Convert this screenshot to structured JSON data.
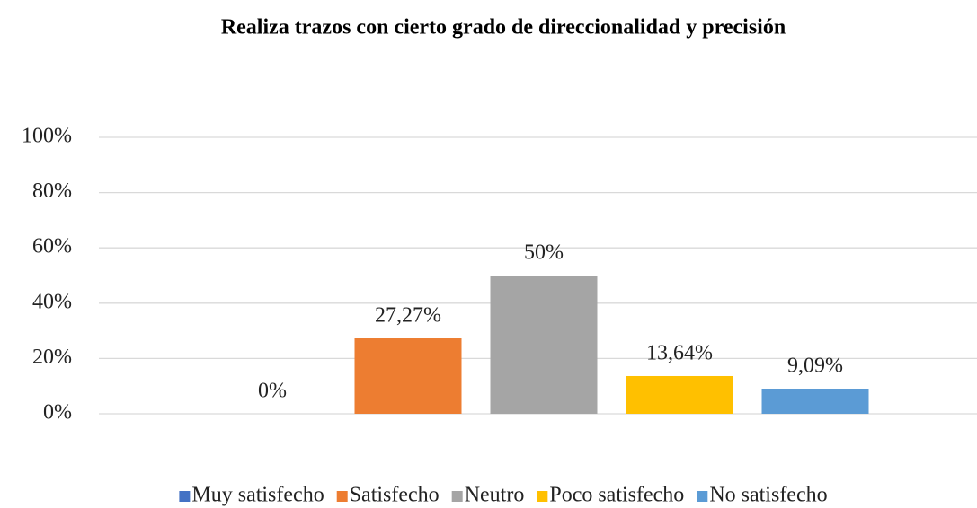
{
  "chart_data": {
    "type": "bar",
    "title": "Realiza trazos con cierto grado de direccionalidad y precisión",
    "categories": [
      null
    ],
    "series": [
      {
        "name": "Muy satisfecho",
        "color": "#4472c4",
        "values": [
          0
        ],
        "value_labels": [
          "0%"
        ]
      },
      {
        "name": "Satisfecho",
        "color": "#ed7d31",
        "values": [
          27.27
        ],
        "value_labels": [
          "27,27%"
        ]
      },
      {
        "name": "Neutro",
        "color": "#a5a5a5",
        "values": [
          50
        ],
        "value_labels": [
          "50%"
        ]
      },
      {
        "name": "Poco satisfecho",
        "color": "#ffc000",
        "values": [
          13.64
        ],
        "value_labels": [
          "13,64%"
        ]
      },
      {
        "name": "No satisfecho",
        "color": "#5b9bd5",
        "values": [
          9.09
        ],
        "value_labels": [
          "9,09%"
        ]
      }
    ],
    "ylim": [
      0,
      100
    ],
    "yticks": [
      {
        "value": 0,
        "label": "0%"
      },
      {
        "value": 20,
        "label": "20%"
      },
      {
        "value": 40,
        "label": "40%"
      },
      {
        "value": 60,
        "label": "60%"
      },
      {
        "value": 80,
        "label": "80%"
      },
      {
        "value": 100,
        "label": "100%"
      }
    ],
    "grid": true,
    "legend": "bottom"
  }
}
